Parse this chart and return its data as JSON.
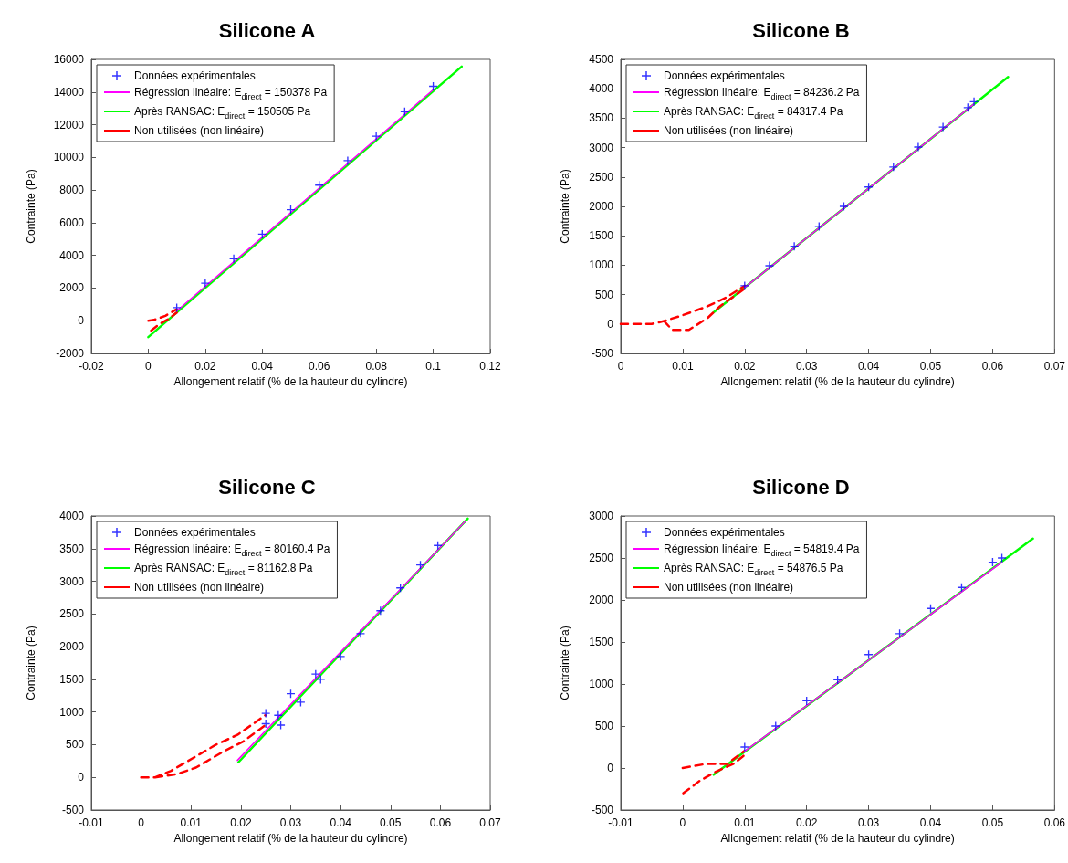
{
  "chart_data": [
    {
      "type": "scatter",
      "title": "Silicone A",
      "xlabel": "Allongement relatif (% de la hauteur du cylindre)",
      "ylabel": "Contrainte (Pa)",
      "xlim": [
        -0.02,
        0.12
      ],
      "xticks": [
        -0.02,
        0,
        0.02,
        0.04,
        0.06,
        0.08,
        0.1,
        0.12
      ],
      "ylim": [
        -2000,
        16000
      ],
      "yticks": [
        -2000,
        0,
        2000,
        4000,
        6000,
        8000,
        10000,
        12000,
        14000,
        16000
      ],
      "grid": false,
      "legend": "top left",
      "series": [
        {
          "name": "Données expérimentales",
          "type": "scatter",
          "marker": "cross",
          "color": "#0000ff",
          "x": [
            0.01,
            0.02,
            0.03,
            0.04,
            0.05,
            0.06,
            0.07,
            0.08,
            0.09,
            0.1
          ],
          "values": [
            800,
            2300,
            3800,
            5300,
            6800,
            8300,
            9800,
            11300,
            12800,
            14350
          ]
        },
        {
          "name": "Régression linéaire: E$_{direct}$ = 150378 Pa",
          "type": "line",
          "line_style": "solid",
          "color": "#ff00ff",
          "x": [
            0.01,
            0.1
          ],
          "values": [
            600,
            14140
          ]
        },
        {
          "name": "Après RANSAC: E$_{direct}$ = 150505 Pa",
          "type": "line",
          "line_style": "solid",
          "color": "#00ff00",
          "x": [
            0,
            0.11
          ],
          "values": [
            -1000,
            15560
          ]
        },
        {
          "name": "Non utilisées (non linéaire)",
          "type": "line",
          "line_style": "dashed",
          "color": "#ff0000",
          "x": [
            0,
            0.002,
            0.006,
            0.01,
            null,
            0.001,
            0.004,
            0.0075,
            0.01
          ],
          "values": [
            0,
            50,
            300,
            700,
            null,
            -600,
            -200,
            150,
            500
          ]
        }
      ]
    },
    {
      "type": "scatter",
      "title": "Silicone B",
      "xlabel": "Allongement relatif (% de la hauteur du cylindre)",
      "ylabel": "Contrainte (Pa)",
      "xlim": [
        0,
        0.07
      ],
      "xticks": [
        0,
        0.01,
        0.02,
        0.03,
        0.04,
        0.05,
        0.06,
        0.07
      ],
      "ylim": [
        -500,
        4500
      ],
      "yticks": [
        -500,
        0,
        500,
        1000,
        1500,
        2000,
        2500,
        3000,
        3500,
        4000,
        4500
      ],
      "grid": false,
      "legend": "top left",
      "series": [
        {
          "name": "Données expérimentales",
          "type": "scatter",
          "marker": "cross",
          "color": "#0000ff",
          "x": [
            0.02,
            0.024,
            0.028,
            0.032,
            0.036,
            0.04,
            0.044,
            0.048,
            0.052,
            0.056,
            0.057
          ],
          "values": [
            650,
            990,
            1320,
            1660,
            2000,
            2330,
            2670,
            3010,
            3350,
            3680,
            3780
          ]
        },
        {
          "name": "Régression linéaire: E$_{direct}$ = 84236.2 Pa",
          "type": "line",
          "line_style": "solid",
          "color": "#ff00ff",
          "x": [
            0.02,
            0.057
          ],
          "values": [
            620,
            3740
          ]
        },
        {
          "name": "Après RANSAC: E$_{direct}$ = 84317.4 Pa",
          "type": "line",
          "line_style": "solid",
          "color": "#00ff00",
          "x": [
            0.015,
            0.0625
          ],
          "values": [
            200,
            4200
          ]
        },
        {
          "name": "Non utilisées (non linéaire)",
          "type": "line",
          "line_style": "dashed",
          "color": "#ff0000",
          "x": [
            0,
            0.0025,
            0.005,
            0.007,
            0.01,
            0.014,
            0.017,
            0.02,
            null,
            0.007,
            0.0083,
            0.011,
            0.014,
            0.016,
            0.02
          ],
          "values": [
            0,
            0,
            0,
            50,
            150,
            300,
            450,
            650,
            null,
            50,
            -100,
            -100,
            100,
            300,
            600
          ]
        }
      ]
    },
    {
      "type": "scatter",
      "title": "Silicone C",
      "xlabel": "Allongement relatif (% de la hauteur du cylindre)",
      "ylabel": "Contrainte (Pa)",
      "xlim": [
        -0.01,
        0.07
      ],
      "xticks": [
        -0.01,
        0,
        0.01,
        0.02,
        0.03,
        0.04,
        0.05,
        0.06,
        0.07
      ],
      "ylim": [
        -500,
        4000
      ],
      "yticks": [
        -500,
        0,
        500,
        1000,
        1500,
        2000,
        2500,
        3000,
        3500,
        4000
      ],
      "grid": false,
      "legend": "top left",
      "series": [
        {
          "name": "Données expérimentales",
          "type": "scatter",
          "marker": "cross",
          "color": "#0000ff",
          "x": [
            0.025,
            0.0275,
            0.028,
            0.032,
            0.036,
            0.04,
            0.044,
            0.048,
            0.052,
            0.056,
            0.0595,
            0.025,
            0.03,
            0.035
          ],
          "values": [
            820,
            950,
            800,
            1150,
            1500,
            1850,
            2200,
            2550,
            2900,
            3250,
            3550,
            980,
            1280,
            1580
          ]
        },
        {
          "name": "Régression linéaire: E$_{direct}$ = 80160.4 Pa",
          "type": "line",
          "line_style": "solid",
          "color": "#ff00ff",
          "x": [
            0.0193,
            0.065
          ],
          "values": [
            260,
            3920
          ]
        },
        {
          "name": "Après RANSAC: E$_{direct}$ = 81162.8 Pa",
          "type": "line",
          "line_style": "solid",
          "color": "#00ff00",
          "x": [
            0.0195,
            0.0655
          ],
          "values": [
            230,
            3960
          ]
        },
        {
          "name": "Non utilisées (non linéaire)",
          "type": "line",
          "line_style": "dashed",
          "color": "#ff0000",
          "x": [
            0,
            0.0028,
            0.006,
            0.0105,
            0.015,
            0.0193,
            0.0249,
            null,
            0.0028,
            0.0072,
            0.011,
            0.0166,
            0.0205,
            0.0249
          ],
          "values": [
            0,
            0,
            100,
            300,
            500,
            650,
            950,
            null,
            0,
            50,
            150,
            400,
            550,
            800
          ]
        }
      ]
    },
    {
      "type": "scatter",
      "title": "Silicone D",
      "xlabel": "Allongement relatif (% de la hauteur du cylindre)",
      "ylabel": "Contrainte (Pa)",
      "xlim": [
        -0.01,
        0.06
      ],
      "xticks": [
        -0.01,
        0,
        0.01,
        0.02,
        0.03,
        0.04,
        0.05,
        0.06
      ],
      "ylim": [
        -500,
        3000
      ],
      "yticks": [
        -500,
        0,
        500,
        1000,
        1500,
        2000,
        2500,
        3000
      ],
      "grid": false,
      "legend": "top left",
      "series": [
        {
          "name": "Données expérimentales",
          "type": "scatter",
          "marker": "cross",
          "color": "#0000ff",
          "x": [
            0.01,
            0.015,
            0.02,
            0.025,
            0.03,
            0.035,
            0.04,
            0.045,
            0.05,
            0.0515
          ],
          "values": [
            250,
            500,
            800,
            1050,
            1350,
            1600,
            1900,
            2150,
            2450,
            2500
          ]
        },
        {
          "name": "Régression linéaire: E$_{direct}$ = 54819.4 Pa",
          "type": "line",
          "line_style": "solid",
          "color": "#ff00ff",
          "x": [
            0.01,
            0.0515
          ],
          "values": [
            200,
            2450
          ]
        },
        {
          "name": "Après RANSAC: E$_{direct}$ = 54876.5 Pa",
          "type": "line",
          "line_style": "solid",
          "color": "#00ff00",
          "x": [
            0.005,
            0.0565
          ],
          "values": [
            -80,
            2730
          ]
        },
        {
          "name": "Non utilisées (non linéaire)",
          "type": "line",
          "line_style": "dashed",
          "color": "#ff0000",
          "x": [
            0,
            0.0038,
            0.0072,
            0.0099,
            null,
            0.0001,
            0.0028,
            0.0052,
            0.0082,
            0.0099
          ],
          "values": [
            0,
            50,
            50,
            200,
            null,
            -300,
            -150,
            -50,
            50,
            150
          ]
        }
      ]
    }
  ]
}
